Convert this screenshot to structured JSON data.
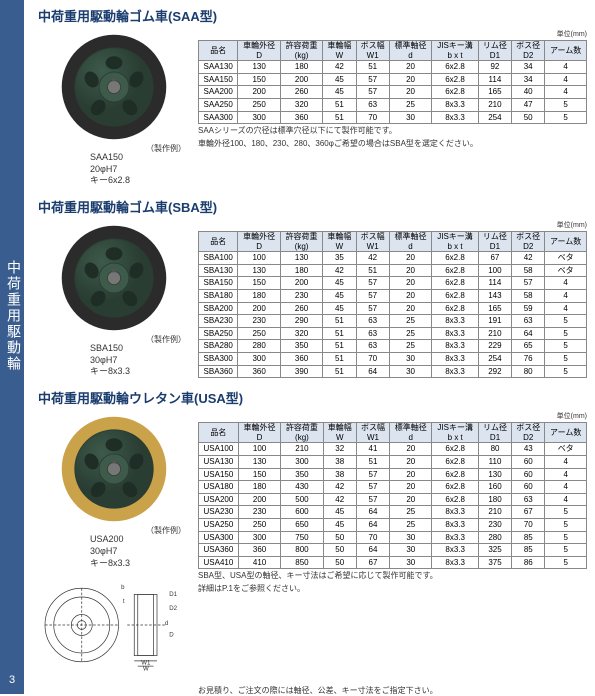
{
  "sidebar": {
    "label": "中荷重用駆動輪",
    "page": "3"
  },
  "unit_label": "単位(mm)",
  "example_label": "（製作例）",
  "columns": {
    "name": "品名",
    "D": "車輪外径",
    "D2": "D",
    "load": "許容荷重",
    "load2": "(kg)",
    "W": "車輪幅",
    "W2": "W",
    "W1": "ボス幅",
    "W12": "W1",
    "d": "標準軸径",
    "d2": "d",
    "key": "JISキー溝",
    "key2": "b x t",
    "D1": "リム径",
    "D12": "D1",
    "Db": "ボス径",
    "Db2": "D2",
    "arm": "アーム数"
  },
  "sections": [
    {
      "title": "中荷重用駆動輪ゴム車(SAA型)",
      "model": {
        "name": "SAA150",
        "bore": "20φH7",
        "key": "キー6x2.8"
      },
      "wheel_colors": {
        "tire": "#2b2b2b",
        "hub": "#3d5a4a",
        "hub_edge": "#2a3d33"
      },
      "rows": [
        [
          "SAA130",
          "130",
          "180",
          "42",
          "51",
          "20",
          "6x2.8",
          "92",
          "34",
          "4"
        ],
        [
          "SAA150",
          "150",
          "200",
          "45",
          "57",
          "20",
          "6x2.8",
          "114",
          "34",
          "4"
        ],
        [
          "SAA200",
          "200",
          "260",
          "45",
          "57",
          "20",
          "6x2.8",
          "165",
          "40",
          "4"
        ],
        [
          "SAA250",
          "250",
          "320",
          "51",
          "63",
          "25",
          "8x3.3",
          "210",
          "47",
          "5"
        ],
        [
          "SAA300",
          "300",
          "360",
          "51",
          "70",
          "30",
          "8x3.3",
          "254",
          "50",
          "5"
        ]
      ],
      "notes": [
        "SAAシリーズの穴径は標準穴径以下にて製作可能です。",
        "車輪外径100、180、230、280、360φご希望の場合はSBA型を選定ください。"
      ]
    },
    {
      "title": "中荷重用駆動輪ゴム車(SBA型)",
      "model": {
        "name": "SBA150",
        "bore": "30φH7",
        "key": "キー8x3.3"
      },
      "wheel_colors": {
        "tire": "#2b2b2b",
        "hub": "#3d5a4a",
        "hub_edge": "#2a3d33"
      },
      "rows": [
        [
          "SBA100",
          "100",
          "130",
          "35",
          "42",
          "20",
          "6x2.8",
          "67",
          "42",
          "ベタ"
        ],
        [
          "SBA130",
          "130",
          "180",
          "42",
          "51",
          "20",
          "6x2.8",
          "100",
          "58",
          "ベタ"
        ],
        [
          "SBA150",
          "150",
          "200",
          "45",
          "57",
          "20",
          "6x2.8",
          "114",
          "57",
          "4"
        ],
        [
          "SBA180",
          "180",
          "230",
          "45",
          "57",
          "20",
          "6x2.8",
          "143",
          "58",
          "4"
        ],
        [
          "SBA200",
          "200",
          "260",
          "45",
          "57",
          "20",
          "6x2.8",
          "165",
          "59",
          "4"
        ],
        [
          "SBA230",
          "230",
          "290",
          "51",
          "63",
          "25",
          "8x3.3",
          "191",
          "63",
          "5"
        ],
        [
          "SBA250",
          "250",
          "320",
          "51",
          "63",
          "25",
          "8x3.3",
          "210",
          "64",
          "5"
        ],
        [
          "SBA280",
          "280",
          "350",
          "51",
          "63",
          "25",
          "8x3.3",
          "229",
          "65",
          "5"
        ],
        [
          "SBA300",
          "300",
          "360",
          "51",
          "70",
          "30",
          "8x3.3",
          "254",
          "76",
          "5"
        ],
        [
          "SBA360",
          "360",
          "390",
          "51",
          "64",
          "30",
          "8x3.3",
          "292",
          "80",
          "5"
        ]
      ],
      "notes": []
    },
    {
      "title": "中荷重用駆動輪ウレタン車(USA型)",
      "model": {
        "name": "USA200",
        "bore": "30φH7",
        "key": "キー8x3.3"
      },
      "wheel_colors": {
        "tire": "#c9a24a",
        "hub": "#3d5a4a",
        "hub_edge": "#2a3d33"
      },
      "rows": [
        [
          "USA100",
          "100",
          "210",
          "32",
          "41",
          "20",
          "6x2.8",
          "80",
          "43",
          "ベタ"
        ],
        [
          "USA130",
          "130",
          "300",
          "38",
          "51",
          "20",
          "6x2.8",
          "110",
          "60",
          "4"
        ],
        [
          "USA150",
          "150",
          "350",
          "38",
          "57",
          "20",
          "6x2.8",
          "130",
          "60",
          "4"
        ],
        [
          "USA180",
          "180",
          "430",
          "42",
          "57",
          "20",
          "6x2.8",
          "160",
          "60",
          "4"
        ],
        [
          "USA200",
          "200",
          "500",
          "42",
          "57",
          "20",
          "6x2.8",
          "180",
          "63",
          "4"
        ],
        [
          "USA230",
          "230",
          "600",
          "45",
          "64",
          "25",
          "8x3.3",
          "210",
          "67",
          "5"
        ],
        [
          "USA250",
          "250",
          "650",
          "45",
          "64",
          "25",
          "8x3.3",
          "230",
          "70",
          "5"
        ],
        [
          "USA300",
          "300",
          "750",
          "50",
          "70",
          "30",
          "8x3.3",
          "280",
          "85",
          "5"
        ],
        [
          "USA360",
          "360",
          "800",
          "50",
          "64",
          "30",
          "8x3.3",
          "325",
          "85",
          "5"
        ],
        [
          "USA410",
          "410",
          "850",
          "50",
          "67",
          "30",
          "8x3.3",
          "375",
          "86",
          "5"
        ]
      ],
      "notes": [
        "SBA型、USA型の軸径、キー寸法はご希望に応じて製作可能です。",
        "詳細はP.1をご参照ください。"
      ],
      "has_dim_drawing": true
    }
  ],
  "footer": "お見積り、ご注文の際には軸径、公差、キー寸法をご指定下さい。"
}
